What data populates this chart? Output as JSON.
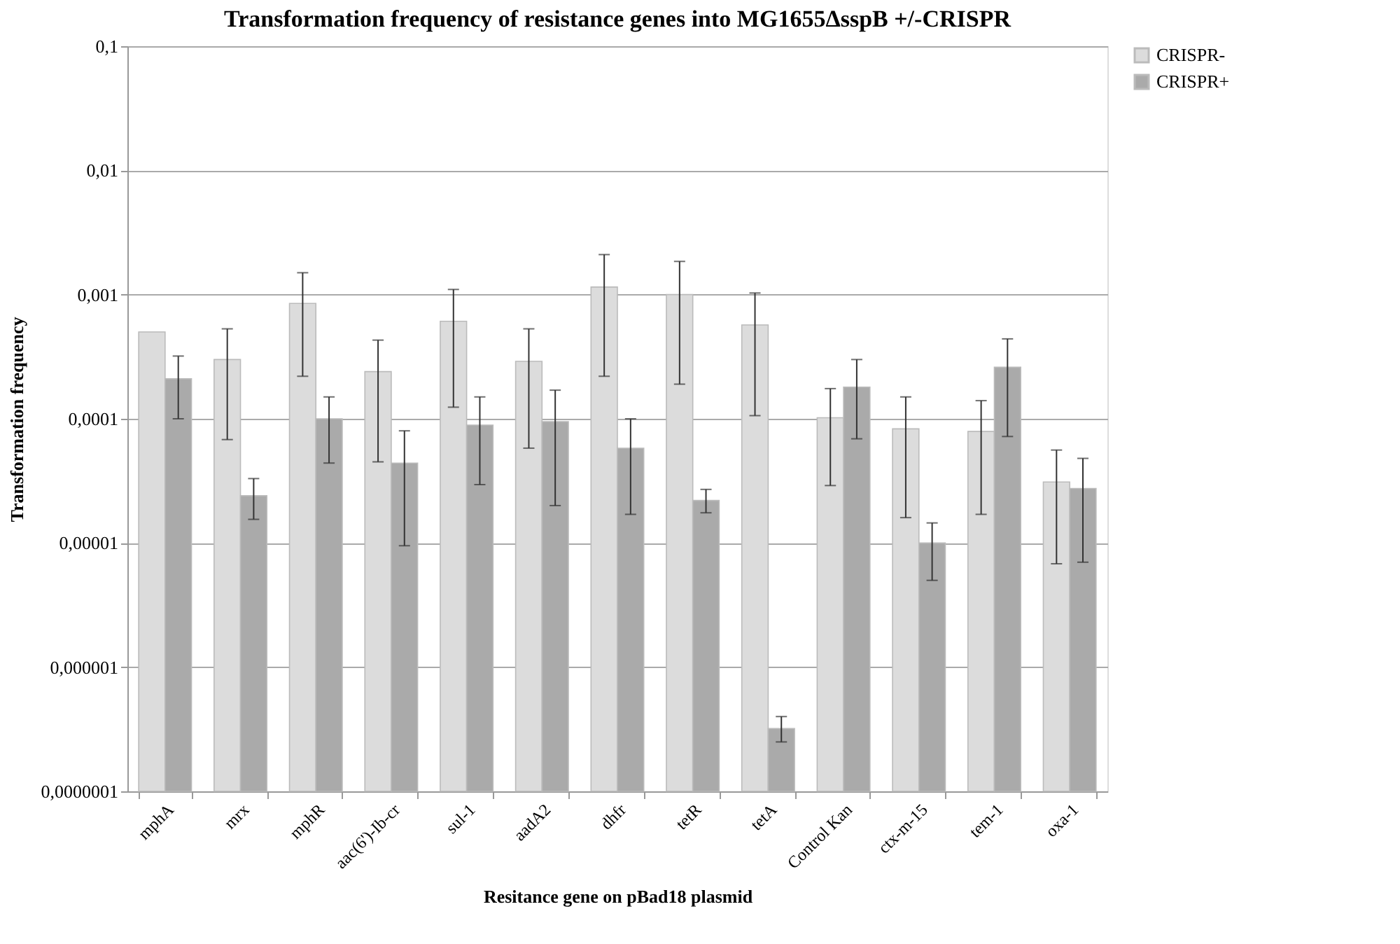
{
  "chart_data": {
    "type": "bar",
    "title": "Transformation frequency of resistance genes into MG1655ΔsspB  +/-CRISPR",
    "xlabel": "Resitance gene on pBad18 plasmid",
    "ylabel": "Transformation frequency",
    "categories": [
      "mphA",
      "mrx",
      "mphR",
      "aac(6')-Ib-cr",
      "sul-1",
      "aadA2",
      "dhfr",
      "tetR",
      "tetA",
      "Control Kan",
      "ctx-m-15",
      "tem-1",
      "oxa-1"
    ],
    "series": [
      {
        "name": "CRISPR-",
        "color": "#dcdcdc",
        "values": [
          0.0005,
          0.0003,
          0.00085,
          0.00024,
          0.00061,
          0.00029,
          0.00115,
          0.001,
          0.00057,
          0.000102,
          8.3e-05,
          7.9e-05,
          3.1e-05
        ],
        "errors": [
          null,
          [
            6.8e-05,
            0.00053
          ],
          [
            0.00022,
            0.0015
          ],
          [
            4.5e-05,
            0.00043
          ],
          [
            0.000124,
            0.0011
          ],
          [
            5.8e-05,
            0.00053
          ],
          [
            0.00022,
            0.0021
          ],
          [
            0.00019,
            0.00185
          ],
          [
            0.000106,
            0.00103
          ],
          [
            2.9e-05,
            0.000175
          ],
          [
            1.6e-05,
            0.00015
          ],
          [
            1.7e-05,
            0.00014
          ],
          [
            6.8e-06,
            5.6e-05
          ]
        ]
      },
      {
        "name": "CRISPR+",
        "color": "#aaaaaa",
        "values": [
          0.00021,
          2.4e-05,
          0.0001,
          4.4e-05,
          8.9e-05,
          9.5e-05,
          5.8e-05,
          2.2e-05,
          3.2e-07,
          0.00018,
          1e-05,
          0.00026,
          2.75e-05
        ],
        "errors": [
          [
            0.0001,
            0.00032
          ],
          [
            1.55e-05,
            3.3e-05
          ],
          [
            4.4e-05,
            0.00015
          ],
          [
            9.5e-06,
            8e-05
          ],
          [
            2.95e-05,
            0.00015
          ],
          [
            2e-05,
            0.00017
          ],
          [
            1.7e-05,
            0.0001
          ],
          [
            1.75e-05,
            2.7e-05
          ],
          [
            2.5e-07,
            4e-07
          ],
          [
            6.9e-05,
            0.0003
          ],
          [
            5e-06,
            1.45e-05
          ],
          [
            7.2e-05,
            0.00044
          ],
          [
            7e-06,
            4.8e-05
          ]
        ]
      }
    ],
    "log": true,
    "ylim": [
      1e-07,
      0.1
    ],
    "yticks": [
      {
        "value": 1e-07,
        "label": "0,0000001"
      },
      {
        "value": 1e-06,
        "label": "0,000001"
      },
      {
        "value": 1e-05,
        "label": "0,00001"
      },
      {
        "value": 0.0001,
        "label": "0,0001"
      },
      {
        "value": 0.001,
        "label": "0,001"
      },
      {
        "value": 0.01,
        "label": "0,01"
      },
      {
        "value": 0.1,
        "label": "0,1"
      }
    ],
    "grid": "y",
    "legend": "right"
  }
}
